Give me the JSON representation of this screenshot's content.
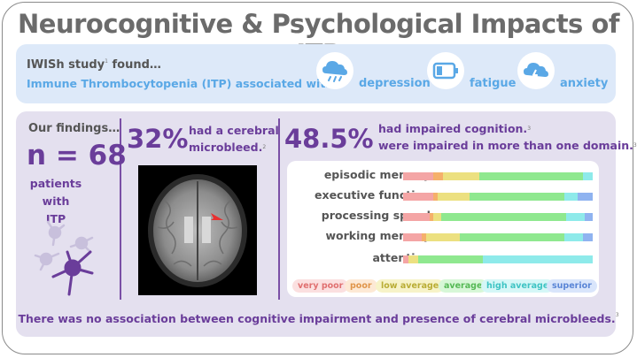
{
  "title": "Neurocognitive & Psychological Impacts of ITP",
  "iwish": {
    "line1": "IWISh study",
    "line1_ref": "1",
    "line1_suffix": " found…",
    "line2": "Immune Thrombocytopenia (ITP) associated with",
    "items": [
      {
        "label": "depression",
        "icon": "rain-cloud-icon"
      },
      {
        "label": "fatigue",
        "icon": "low-battery-icon"
      },
      {
        "label": "anxiety",
        "icon": "storm-cloud-icon"
      }
    ]
  },
  "findings": {
    "heading": "Our findings…",
    "n": "n = 68",
    "patients_line1": "patients with",
    "patients_line2": "ITP"
  },
  "microbleed": {
    "pct": "32%",
    "text1": "had a cerebral",
    "text2": "microbleed.",
    "ref": "2"
  },
  "cognition": {
    "pct": "48.5%",
    "text1": "had impaired cognition.",
    "ref1": "3",
    "text2": "were impaired in more than one domain.",
    "ref2": "3",
    "domains": [
      {
        "label": "episodic memory",
        "values": [
          0.16,
          0.05,
          0.19,
          0.55,
          0.05
        ]
      },
      {
        "label": "executive function",
        "values": [
          0.16,
          0.02,
          0.17,
          0.5,
          0.07
        ]
      },
      {
        "label": "processing speed",
        "values": [
          0.14,
          0.02,
          0.04,
          0.66,
          0.1
        ]
      },
      {
        "label": "working memory",
        "values": [
          0.1,
          0.02,
          0.18,
          0.55,
          0.1
        ]
      },
      {
        "label": "attention",
        "values": [
          0.03,
          0.0,
          0.05,
          0.34,
          0.58
        ]
      }
    ],
    "legend": [
      {
        "label": "very poor",
        "color": "#f4a5a5",
        "bg": "#fbe0e0",
        "text": "#e07070"
      },
      {
        "label": "poor",
        "color": "#f5b06b",
        "bg": "#fde9d5",
        "text": "#e0954a"
      },
      {
        "label": "low average",
        "color": "#ece080",
        "bg": "#f7f3c8",
        "text": "#b9ad35"
      },
      {
        "label": "average",
        "color": "#8fe88f",
        "bg": "#d7f7d7",
        "text": "#55b955"
      },
      {
        "label": "high average",
        "color": "#8eeaea",
        "bg": "#d5f7f7",
        "text": "#3fc4c4"
      },
      {
        "label": "superior",
        "color": "#8fb3f0",
        "bg": "#d9e5fb",
        "text": "#5a85d6"
      }
    ]
  },
  "footer": "There was no association between cognitive impairment and presence of cerebral microbleeds.",
  "footer_ref": "3"
}
